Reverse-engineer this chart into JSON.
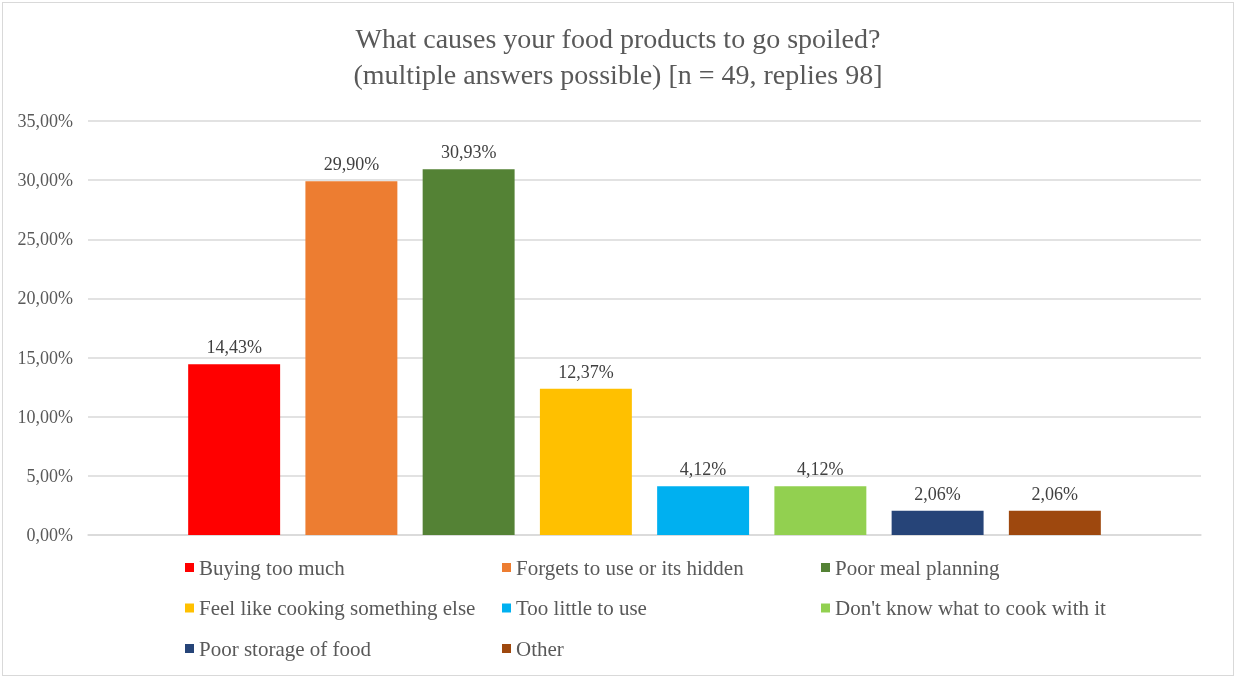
{
  "chart_data": {
    "type": "bar",
    "title": "What causes your food products to go spoiled?\n(multiple answers possible) [n = 49, replies 98]",
    "categories": [
      null
    ],
    "series": [
      {
        "name": "Buying too much",
        "color": "#ff0000",
        "values": [
          14.43
        ],
        "value_labels": [
          "14,43%"
        ]
      },
      {
        "name": "Forgets to use or its hidden",
        "color": "#ed7d31",
        "values": [
          29.9
        ],
        "value_labels": [
          "29,90%"
        ]
      },
      {
        "name": "Poor meal planning",
        "color": "#548235",
        "values": [
          30.93
        ],
        "value_labels": [
          "30,93%"
        ]
      },
      {
        "name": "Feel like cooking something else",
        "color": "#ffc000",
        "values": [
          12.37
        ],
        "value_labels": [
          "12,37%"
        ]
      },
      {
        "name": "Too little to use",
        "color": "#00b0f0",
        "values": [
          4.12
        ],
        "value_labels": [
          "4,12%"
        ]
      },
      {
        "name": "Don't know what to cook with it",
        "color": "#92d050",
        "values": [
          4.12
        ],
        "value_labels": [
          "4,12%"
        ]
      },
      {
        "name": "Poor storage of food",
        "color": "#264478",
        "values": [
          2.06
        ],
        "value_labels": [
          "2,06%"
        ]
      },
      {
        "name": "Other",
        "color": "#9e480e",
        "values": [
          2.06
        ],
        "value_labels": [
          "2,06%"
        ]
      }
    ],
    "ylim": [
      0,
      35
    ],
    "yticks": [
      {
        "value": 0,
        "label": "0,00%"
      },
      {
        "value": 5,
        "label": "5,00%"
      },
      {
        "value": 10,
        "label": "10,00%"
      },
      {
        "value": 15,
        "label": "15,00%"
      },
      {
        "value": 20,
        "label": "20,00%"
      },
      {
        "value": 25,
        "label": "25,00%"
      },
      {
        "value": 30,
        "label": "30,00%"
      },
      {
        "value": 35,
        "label": "35,00%"
      }
    ],
    "grid": "y",
    "legend": "bottom"
  }
}
